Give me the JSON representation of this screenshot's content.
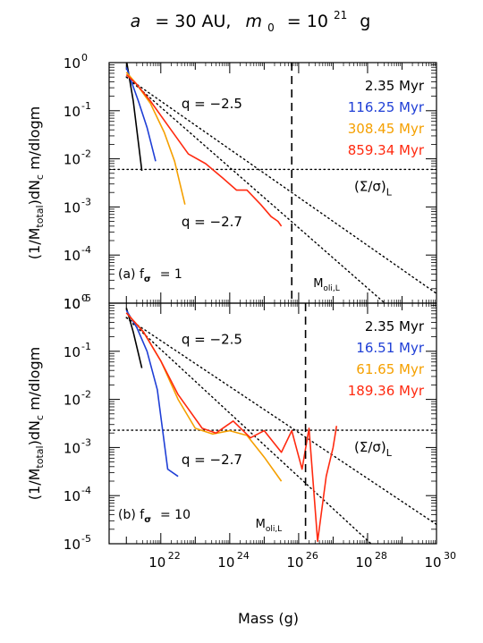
{
  "title": {
    "a_var": "a",
    "a_eq": "= 30 AU,",
    "m_var": "m",
    "m_sub": "0",
    "m_eq": "= 10",
    "m_exp": "21",
    "m_unit": "g"
  },
  "colors": {
    "t1": "#000000",
    "t2": "#1f3fd6",
    "t3": "#f5a000",
    "t4": "#ff2a10"
  },
  "chart_data": [
    {
      "type": "line",
      "panel_label": "(a) f",
      "panel_label_sub": "σ",
      "panel_label_eq": "= 1",
      "xlabel": "",
      "ylabel": "(1/M_total)dN_c m/dlogm",
      "ylabel_parts": {
        "a": "(1/M",
        "sub1": "total",
        "b": ")dN",
        "sub2": "c",
        "c": " m/dlogm"
      },
      "xlim_log10": [
        20.5,
        30
      ],
      "ylim_log10": [
        -5,
        0
      ],
      "y_ticks": [
        {
          "base": "10",
          "exp": "0",
          "log": 0
        },
        {
          "base": "10",
          "exp": "-1",
          "log": -1
        },
        {
          "base": "10",
          "exp": "-2",
          "log": -2
        },
        {
          "base": "10",
          "exp": "-3",
          "log": -3
        },
        {
          "base": "10",
          "exp": "-4",
          "log": -4
        },
        {
          "base": "10",
          "exp": "-5",
          "log": -5
        }
      ],
      "legend": [
        "2.35 Myr",
        "116.25 Myr",
        "308.45 Myr",
        "859.34 Myr"
      ],
      "series": [
        {
          "name": "2.35 Myr",
          "color": "#000000",
          "x_log10": [
            21.0,
            21.2,
            21.45
          ],
          "y_log10": [
            0.05,
            -0.8,
            -2.25
          ]
        },
        {
          "name": "116.25 Myr",
          "color": "#1f3fd6",
          "x_log10": [
            21.0,
            21.15,
            21.35,
            21.6,
            21.85
          ],
          "y_log10": [
            -0.1,
            -0.4,
            -0.8,
            -1.35,
            -2.05
          ]
        },
        {
          "name": "308.45 Myr",
          "color": "#f5a000",
          "x_log10": [
            21.0,
            21.3,
            21.7,
            22.1,
            22.4,
            22.7
          ],
          "y_log10": [
            -0.2,
            -0.45,
            -0.85,
            -1.45,
            -2.05,
            -2.95
          ]
        },
        {
          "name": "859.34 Myr",
          "color": "#ff2a10",
          "x_log10": [
            21.0,
            21.3,
            21.7,
            22.3,
            22.8,
            23.3,
            23.8,
            24.2,
            24.5,
            24.9,
            25.2,
            25.4,
            25.5
          ],
          "y_log10": [
            -0.25,
            -0.45,
            -0.8,
            -1.4,
            -1.9,
            -2.1,
            -2.4,
            -2.65,
            -2.65,
            -2.95,
            -3.2,
            -3.3,
            -3.4
          ]
        }
      ],
      "reference_lines": [
        {
          "label": "q = −2.5",
          "x_log10": [
            21.0,
            30.0
          ],
          "y_log10": [
            -0.3,
            -4.8
          ]
        },
        {
          "label": "q = −2.7",
          "x_log10": [
            21.0,
            28.5
          ],
          "y_log10": [
            -0.3,
            -5.0
          ]
        }
      ],
      "horizontal_line": {
        "label_main": "(Σ/σ)",
        "label_sub": "L",
        "y_log10": -2.22
      },
      "vertical_line": {
        "label_main": "M",
        "label_sub": "oli,L",
        "x_log10": 25.8
      },
      "q_labels": [
        {
          "text": "q = −2.5",
          "x_log10": 22.6,
          "y_log10": -0.95
        },
        {
          "text": "q = −2.7",
          "x_log10": 22.6,
          "y_log10": -3.4
        }
      ]
    },
    {
      "type": "line",
      "panel_label": "(b) f",
      "panel_label_sub": "σ",
      "panel_label_eq": "= 10",
      "xlabel": "Mass (g)",
      "ylabel": "(1/M_total)dN_c m/dlogm",
      "ylabel_parts": {
        "a": "(1/M",
        "sub1": "total",
        "b": ")dN",
        "sub2": "c",
        "c": " m/dlogm"
      },
      "xlim_log10": [
        20.5,
        30
      ],
      "ylim_log10": [
        -5,
        0
      ],
      "x_ticks": [
        {
          "base": "10",
          "exp": "22",
          "log": 22
        },
        {
          "base": "10",
          "exp": "24",
          "log": 24
        },
        {
          "base": "10",
          "exp": "26",
          "log": 26
        },
        {
          "base": "10",
          "exp": "28",
          "log": 28
        },
        {
          "base": "10",
          "exp": "30",
          "log": 30
        }
      ],
      "y_ticks": [
        {
          "base": "10",
          "exp": "0",
          "log": 0
        },
        {
          "base": "10",
          "exp": "-1",
          "log": -1
        },
        {
          "base": "10",
          "exp": "-2",
          "log": -2
        },
        {
          "base": "10",
          "exp": "-3",
          "log": -3
        },
        {
          "base": "10",
          "exp": "-4",
          "log": -4
        },
        {
          "base": "10",
          "exp": "-5",
          "log": -5
        }
      ],
      "legend": [
        "2.35 Myr",
        "16.51 Myr",
        "61.65 Myr",
        "189.36 Myr"
      ],
      "series": [
        {
          "name": "2.35 Myr",
          "color": "#000000",
          "x_log10": [
            21.0,
            21.2,
            21.45
          ],
          "y_log10": [
            -0.1,
            -0.6,
            -1.35
          ]
        },
        {
          "name": "16.51 Myr",
          "color": "#1f3fd6",
          "x_log10": [
            21.0,
            21.3,
            21.6,
            21.9,
            22.2,
            22.5
          ],
          "y_log10": [
            -0.15,
            -0.5,
            -1.0,
            -1.8,
            -3.45,
            -3.6
          ]
        },
        {
          "name": "61.65 Myr",
          "color": "#f5a000",
          "x_log10": [
            21.0,
            21.5,
            22.0,
            22.5,
            23.0,
            23.5,
            24.0,
            24.5,
            25.0,
            25.5
          ],
          "y_log10": [
            -0.2,
            -0.6,
            -1.2,
            -2.0,
            -2.6,
            -2.72,
            -2.65,
            -2.75,
            -3.2,
            -3.7
          ]
        },
        {
          "name": "189.36 Myr",
          "color": "#ff2a10",
          "x_log10": [
            21.0,
            21.5,
            22.0,
            22.5,
            23.2,
            23.6,
            24.1,
            24.6,
            25.0,
            25.5,
            25.8,
            26.1,
            26.3,
            26.55,
            26.8,
            27.0,
            27.1
          ],
          "y_log10": [
            -0.2,
            -0.6,
            -1.2,
            -1.9,
            -2.6,
            -2.7,
            -2.45,
            -2.8,
            -2.65,
            -3.1,
            -2.65,
            -3.45,
            -2.6,
            -4.95,
            -3.6,
            -3.0,
            -2.55
          ]
        }
      ],
      "reference_lines": [
        {
          "label": "q = −2.5",
          "x_log10": [
            21.0,
            30.0
          ],
          "y_log10": [
            -0.3,
            -4.6
          ]
        },
        {
          "label": "q = −2.7",
          "x_log10": [
            21.0,
            28.1
          ],
          "y_log10": [
            -0.3,
            -5.0
          ]
        }
      ],
      "horizontal_line": {
        "label_main": "(Σ/σ)",
        "label_sub": "L",
        "y_log10": -2.64
      },
      "vertical_line": {
        "label_main": "M",
        "label_sub": "oli,L",
        "x_log10": 26.2
      },
      "q_labels": [
        {
          "text": "q = −2.5",
          "x_log10": 22.6,
          "y_log10": -0.85
        },
        {
          "text": "q = −2.7",
          "x_log10": 22.6,
          "y_log10": -3.35
        }
      ]
    }
  ]
}
